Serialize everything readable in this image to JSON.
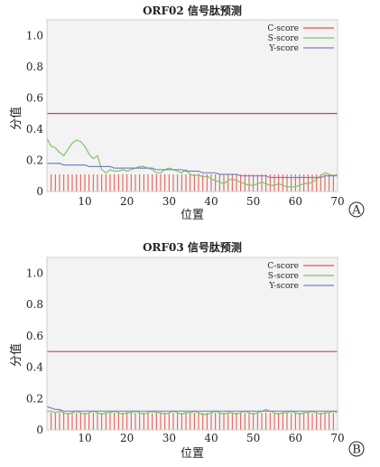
{
  "chart_data": [
    {
      "type": "line",
      "panel_label": "A",
      "title": "ORF02 信号肽预测",
      "xlabel": "位置",
      "ylabel": "分值",
      "xlim": [
        1,
        70
      ],
      "ylim": [
        0,
        1.1
      ],
      "xticks": [
        10,
        20,
        30,
        40,
        50,
        60,
        70
      ],
      "yticks": [
        "0",
        "0.2",
        "0.4",
        "0.6",
        "0.8",
        "1.0"
      ],
      "threshold": 0.5,
      "legend_position": "top-right",
      "colors": {
        "c": "#e0554a",
        "s": "#7cc46a",
        "y": "#7a80c8",
        "threshold": "#b7477a"
      },
      "series": [
        {
          "name": "C-score",
          "style": "bars",
          "values": [
            0.11,
            0.11,
            0.11,
            0.11,
            0.11,
            0.11,
            0.11,
            0.11,
            0.11,
            0.11,
            0.11,
            0.11,
            0.11,
            0.11,
            0.11,
            0.11,
            0.11,
            0.11,
            0.11,
            0.11,
            0.11,
            0.11,
            0.11,
            0.11,
            0.11,
            0.11,
            0.11,
            0.11,
            0.11,
            0.11,
            0.11,
            0.11,
            0.11,
            0.11,
            0.11,
            0.11,
            0.11,
            0.11,
            0.11,
            0.11,
            0.11,
            0.11,
            0.11,
            0.11,
            0.11,
            0.11,
            0.11,
            0.11,
            0.11,
            0.11,
            0.11,
            0.11,
            0.11,
            0.11,
            0.11,
            0.11,
            0.11,
            0.11,
            0.11,
            0.11,
            0.11,
            0.11,
            0.11,
            0.11,
            0.11,
            0.11,
            0.11,
            0.11,
            0.11,
            0.11
          ]
        },
        {
          "name": "S-score",
          "style": "line",
          "values": [
            0.34,
            0.29,
            0.28,
            0.25,
            0.23,
            0.27,
            0.31,
            0.33,
            0.32,
            0.29,
            0.24,
            0.21,
            0.23,
            0.14,
            0.12,
            0.14,
            0.13,
            0.13,
            0.14,
            0.13,
            0.14,
            0.15,
            0.16,
            0.16,
            0.15,
            0.14,
            0.12,
            0.12,
            0.14,
            0.15,
            0.14,
            0.13,
            0.12,
            0.14,
            0.11,
            0.1,
            0.11,
            0.09,
            0.1,
            0.08,
            0.07,
            0.06,
            0.05,
            0.07,
            0.08,
            0.07,
            0.06,
            0.05,
            0.04,
            0.04,
            0.05,
            0.06,
            0.05,
            0.04,
            0.04,
            0.05,
            0.04,
            0.03,
            0.03,
            0.03,
            0.04,
            0.05,
            0.05,
            0.06,
            0.08,
            0.1,
            0.12,
            0.11,
            0.1,
            0.11
          ]
        },
        {
          "name": "Y-score",
          "style": "line",
          "values": [
            0.18,
            0.18,
            0.18,
            0.18,
            0.17,
            0.17,
            0.17,
            0.17,
            0.17,
            0.17,
            0.16,
            0.16,
            0.16,
            0.16,
            0.16,
            0.16,
            0.15,
            0.15,
            0.15,
            0.15,
            0.15,
            0.15,
            0.15,
            0.15,
            0.15,
            0.15,
            0.14,
            0.14,
            0.14,
            0.14,
            0.14,
            0.14,
            0.14,
            0.13,
            0.13,
            0.13,
            0.13,
            0.12,
            0.12,
            0.12,
            0.12,
            0.11,
            0.11,
            0.11,
            0.11,
            0.11,
            0.1,
            0.1,
            0.1,
            0.1,
            0.1,
            0.1,
            0.1,
            0.09,
            0.09,
            0.09,
            0.09,
            0.09,
            0.09,
            0.09,
            0.09,
            0.09,
            0.09,
            0.09,
            0.09,
            0.09,
            0.1,
            0.1,
            0.1,
            0.1
          ]
        }
      ]
    },
    {
      "type": "line",
      "panel_label": "B",
      "title": "ORF03 信号肽预测",
      "xlabel": "位置",
      "ylabel": "分值",
      "xlim": [
        1,
        70
      ],
      "ylim": [
        0,
        1.1
      ],
      "xticks": [
        10,
        20,
        30,
        40,
        50,
        60,
        70
      ],
      "yticks": [
        "0",
        "0.2",
        "0.4",
        "0.6",
        "0.8",
        "1.0"
      ],
      "threshold": 0.5,
      "legend_position": "top-right",
      "colors": {
        "c": "#e0554a",
        "s": "#7cc46a",
        "y": "#7a80c8",
        "threshold": "#b7477a"
      },
      "series": [
        {
          "name": "C-score",
          "style": "bars",
          "values": [
            0.11,
            0.11,
            0.11,
            0.11,
            0.11,
            0.11,
            0.11,
            0.11,
            0.11,
            0.11,
            0.11,
            0.11,
            0.11,
            0.11,
            0.11,
            0.11,
            0.11,
            0.11,
            0.11,
            0.11,
            0.11,
            0.11,
            0.11,
            0.11,
            0.11,
            0.11,
            0.11,
            0.11,
            0.11,
            0.11,
            0.11,
            0.11,
            0.11,
            0.11,
            0.11,
            0.11,
            0.11,
            0.11,
            0.11,
            0.11,
            0.11,
            0.11,
            0.11,
            0.11,
            0.11,
            0.11,
            0.11,
            0.11,
            0.11,
            0.11,
            0.11,
            0.11,
            0.11,
            0.11,
            0.11,
            0.11,
            0.11,
            0.11,
            0.11,
            0.11,
            0.11,
            0.11,
            0.11,
            0.11,
            0.11,
            0.11,
            0.11,
            0.11,
            0.11,
            0.11
          ]
        },
        {
          "name": "S-score",
          "style": "line",
          "values": [
            0.12,
            0.12,
            0.11,
            0.12,
            0.11,
            0.1,
            0.11,
            0.12,
            0.11,
            0.1,
            0.11,
            0.12,
            0.11,
            0.1,
            0.11,
            0.11,
            0.12,
            0.11,
            0.1,
            0.11,
            0.11,
            0.12,
            0.11,
            0.1,
            0.11,
            0.12,
            0.11,
            0.11,
            0.1,
            0.11,
            0.12,
            0.11,
            0.1,
            0.11,
            0.11,
            0.12,
            0.11,
            0.1,
            0.1,
            0.11,
            0.12,
            0.11,
            0.1,
            0.11,
            0.11,
            0.1,
            0.11,
            0.12,
            0.11,
            0.1,
            0.11,
            0.12,
            0.13,
            0.12,
            0.11,
            0.1,
            0.11,
            0.11,
            0.12,
            0.11,
            0.1,
            0.11,
            0.11,
            0.12,
            0.11,
            0.1,
            0.11,
            0.11,
            0.12,
            0.11
          ]
        },
        {
          "name": "Y-score",
          "style": "line",
          "values": [
            0.15,
            0.14,
            0.13,
            0.13,
            0.12,
            0.12,
            0.12,
            0.12,
            0.12,
            0.12,
            0.12,
            0.12,
            0.12,
            0.12,
            0.12,
            0.12,
            0.12,
            0.12,
            0.12,
            0.12,
            0.12,
            0.12,
            0.12,
            0.12,
            0.12,
            0.12,
            0.12,
            0.12,
            0.12,
            0.12,
            0.12,
            0.12,
            0.12,
            0.12,
            0.12,
            0.12,
            0.12,
            0.12,
            0.12,
            0.12,
            0.12,
            0.12,
            0.12,
            0.12,
            0.12,
            0.12,
            0.12,
            0.12,
            0.12,
            0.12,
            0.12,
            0.12,
            0.12,
            0.12,
            0.12,
            0.12,
            0.12,
            0.12,
            0.12,
            0.12,
            0.12,
            0.12,
            0.12,
            0.12,
            0.12,
            0.12,
            0.12,
            0.12,
            0.12,
            0.12
          ]
        }
      ]
    }
  ]
}
